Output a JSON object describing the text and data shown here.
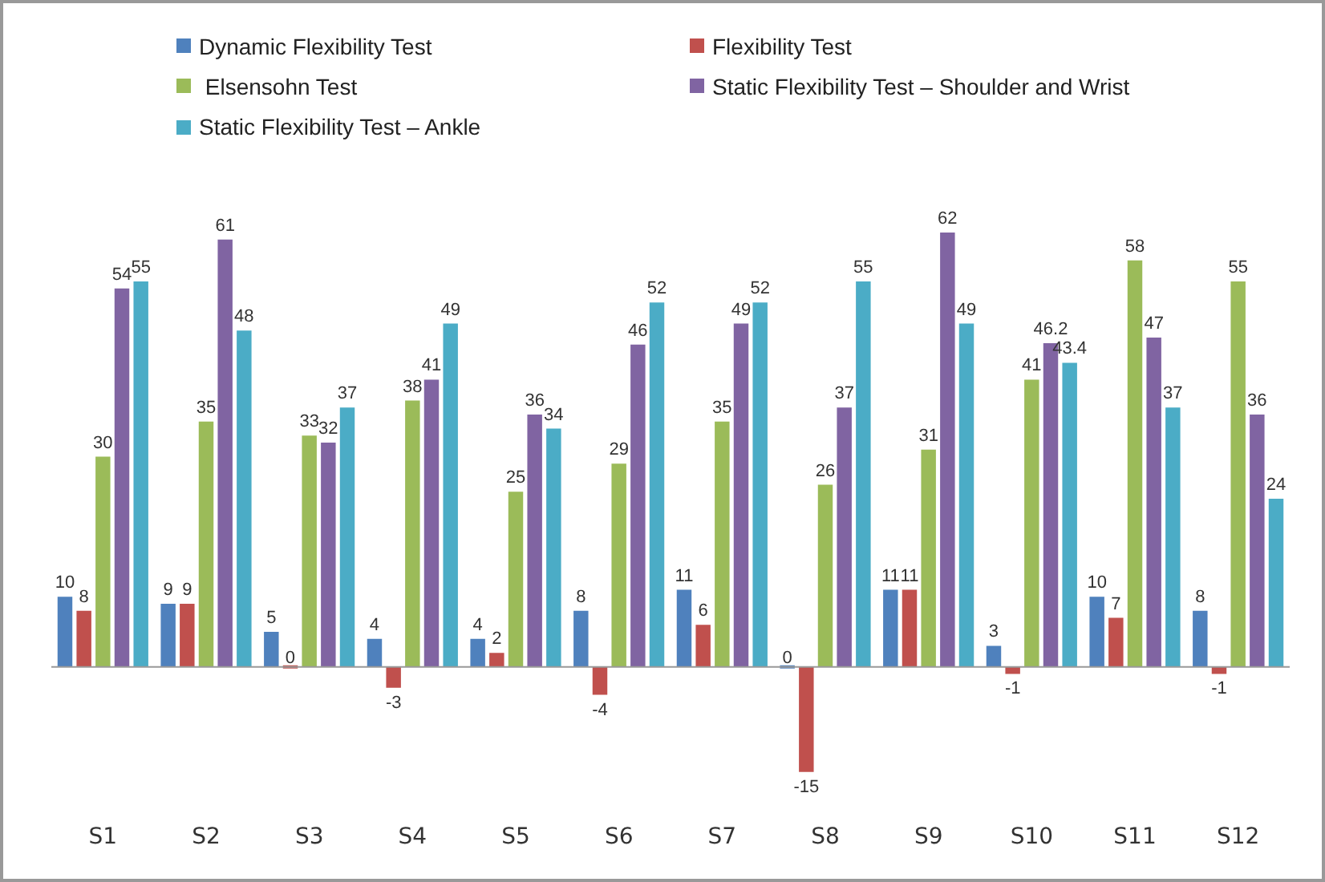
{
  "chart_data": {
    "type": "bar",
    "categories": [
      "S1",
      "S2",
      "S3",
      "S4",
      "S5",
      "S6",
      "S7",
      "S8",
      "S9",
      "S10",
      "S11",
      "S12"
    ],
    "series": [
      {
        "name": "Dynamic Flexibility Test",
        "color": "#4f81bd",
        "values": [
          10,
          9,
          5,
          4,
          4,
          8,
          11,
          0,
          11,
          3,
          10,
          8
        ]
      },
      {
        "name": "Flexibility Test",
        "color": "#c0504d",
        "values": [
          8,
          9,
          0,
          -3,
          2,
          -4,
          6,
          -15,
          11,
          -1,
          7,
          -1
        ]
      },
      {
        "name": " Elsensohn Test",
        "color": "#9bbb59",
        "values": [
          30,
          35,
          33,
          38,
          25,
          29,
          35,
          26,
          31,
          41,
          58,
          55
        ]
      },
      {
        "name": "Static Flexibility Test – Shoulder and Wrist",
        "color": "#8064a2",
        "values": [
          54,
          61,
          32,
          41,
          36,
          46,
          49,
          37,
          62,
          46.2,
          47,
          36
        ]
      },
      {
        "name": "Static Flexibility Test – Ankle",
        "color": "#4bacc6",
        "values": [
          55,
          48,
          37,
          49,
          34,
          52,
          52,
          55,
          49,
          43.4,
          37,
          24
        ]
      }
    ],
    "data_labels": true,
    "legend": "top",
    "tick_labels": "x",
    "grid": false
  }
}
